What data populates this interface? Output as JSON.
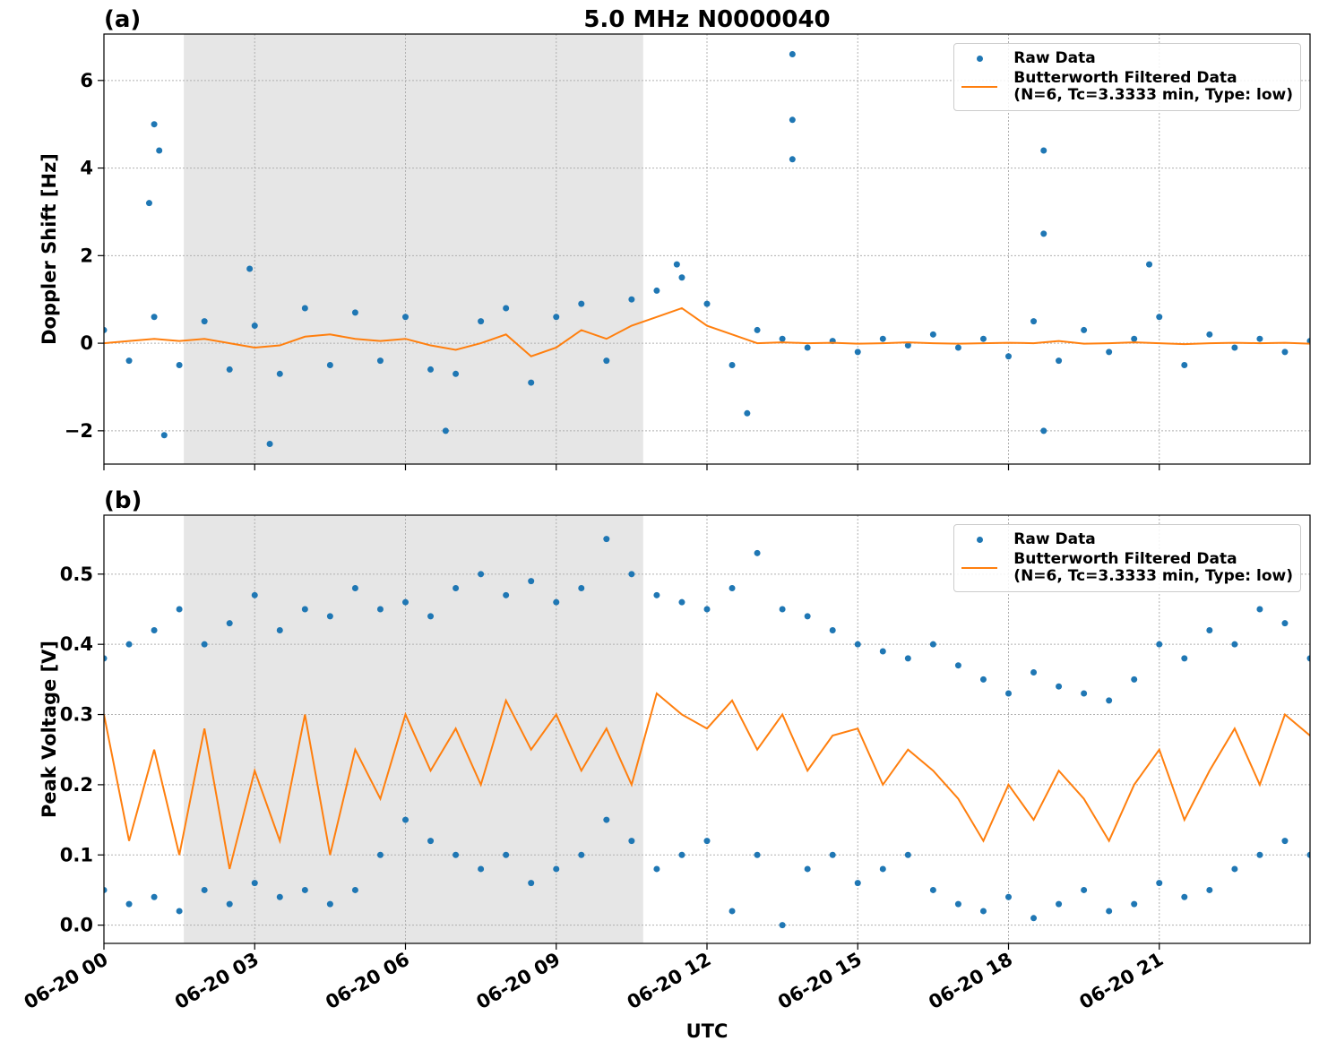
{
  "chart_data": [
    {
      "type": "combo",
      "panel_label": "(a)",
      "title": "5.0 MHz N0000040",
      "ylabel": "Doppler Shift [Hz]",
      "xlim": [
        0,
        24
      ],
      "xticks": [
        0,
        3,
        6,
        9,
        12,
        15,
        18,
        21
      ],
      "show_xtick_labels": false,
      "ylim": [
        -2.76,
        7.06
      ],
      "yticks": [
        {
          "value": -2,
          "label": "−2"
        },
        0,
        2,
        4,
        6
      ],
      "grid": true,
      "legend": "upper right",
      "shade": {
        "xlim": [
          1.59,
          10.73
        ],
        "color": "#e6e6e6"
      },
      "series": [
        {
          "name": "Raw Data",
          "type": "scatter",
          "color": "#1f77b4",
          "x": [
            0,
            0.5,
            1,
            1.5,
            2,
            2.5,
            3,
            3.5,
            4,
            4.5,
            5,
            5.5,
            6,
            6.5,
            7,
            7.5,
            8,
            8.5,
            9,
            9.5,
            10,
            10.5,
            11,
            11.5,
            12,
            12.5,
            13,
            13.5,
            14,
            14.5,
            15,
            15.5,
            16,
            16.5,
            17,
            17.5,
            18,
            18.5,
            19,
            19.5,
            20,
            20.5,
            21,
            21.5,
            22,
            22.5,
            23,
            23.5,
            24,
            1.0,
            1.1,
            0.9,
            1.2,
            2.9,
            3.3,
            6.8,
            11.4,
            13.7,
            13.7,
            13.7,
            18.7,
            18.7,
            18.7,
            20.8,
            12.8
          ],
          "values": [
            0.3,
            -0.4,
            0.6,
            -0.5,
            0.5,
            -0.6,
            0.4,
            -0.7,
            0.8,
            -0.5,
            0.7,
            -0.4,
            0.6,
            -0.6,
            -0.7,
            0.5,
            0.8,
            -0.9,
            0.6,
            0.9,
            -0.4,
            1.0,
            1.2,
            1.5,
            0.9,
            -0.5,
            0.3,
            0.1,
            -0.1,
            0.05,
            -0.2,
            0.1,
            -0.05,
            0.2,
            -0.1,
            0.1,
            -0.3,
            0.5,
            -0.4,
            0.3,
            -0.2,
            0.1,
            0.6,
            -0.5,
            0.2,
            -0.1,
            0.1,
            -0.2,
            0.05,
            5.0,
            4.4,
            3.2,
            -2.1,
            1.7,
            -2.3,
            -2.0,
            1.8,
            6.6,
            5.1,
            4.2,
            4.4,
            2.5,
            -2.0,
            1.8,
            -1.6
          ]
        },
        {
          "name": "Butterworth Filtered Data\n(N=6, Tc=3.3333 min, Type: low)",
          "type": "line",
          "color": "#ff7f0e",
          "x": [
            0,
            0.5,
            1,
            1.5,
            2,
            2.5,
            3,
            3.5,
            4,
            4.5,
            5,
            5.5,
            6,
            6.5,
            7,
            7.5,
            8,
            8.5,
            9,
            9.5,
            10,
            10.5,
            11,
            11.5,
            12,
            12.5,
            13,
            13.5,
            14,
            14.5,
            15,
            15.5,
            16,
            16.5,
            17,
            17.5,
            18,
            18.5,
            19,
            19.5,
            20,
            20.5,
            21,
            21.5,
            22,
            22.5,
            23,
            23.5,
            24
          ],
          "values": [
            0,
            0.05,
            0.1,
            0.05,
            0.1,
            0,
            -0.1,
            -0.05,
            0.15,
            0.2,
            0.1,
            0.05,
            0.1,
            -0.05,
            -0.15,
            0,
            0.2,
            -0.3,
            -0.1,
            0.3,
            0.1,
            0.4,
            0.6,
            0.8,
            0.4,
            0.2,
            0,
            0.02,
            0,
            0.01,
            -0.01,
            0,
            0.02,
            0,
            -0.01,
            0,
            0.01,
            0,
            0.05,
            -0.01,
            0,
            0.02,
            0,
            -0.02,
            0,
            0.01,
            0,
            0.01,
            -0.01
          ]
        }
      ]
    },
    {
      "type": "combo",
      "panel_label": "(b)",
      "ylabel": "Peak Voltage [V]",
      "xlabel": "UTC",
      "xlim": [
        0,
        24
      ],
      "xticks": [
        {
          "value": 0,
          "label": "06-20 00"
        },
        {
          "value": 3,
          "label": "06-20 03"
        },
        {
          "value": 6,
          "label": "06-20 06"
        },
        {
          "value": 9,
          "label": "06-20 09"
        },
        {
          "value": 12,
          "label": "06-20 12"
        },
        {
          "value": 15,
          "label": "06-20 15"
        },
        {
          "value": 18,
          "label": "06-20 18"
        },
        {
          "value": 21,
          "label": "06-20 21"
        }
      ],
      "show_xtick_labels": true,
      "ylim": [
        -0.026,
        0.584
      ],
      "yticks": [
        {
          "value": 0,
          "label": "0.0"
        },
        0.1,
        0.2,
        0.3,
        0.4,
        0.5
      ],
      "grid": true,
      "legend": "upper right",
      "shade": {
        "xlim": [
          1.59,
          10.73
        ],
        "color": "#e6e6e6"
      },
      "series": [
        {
          "name": "Raw Data",
          "type": "scatter",
          "color": "#1f77b4",
          "x": [
            0,
            0.5,
            1,
            1.5,
            2,
            2.5,
            3,
            3.5,
            4,
            4.5,
            5,
            5.5,
            6,
            6.5,
            7,
            7.5,
            8,
            8.5,
            9,
            9.5,
            10,
            10.5,
            11,
            11.5,
            12,
            12.5,
            13,
            13.5,
            14,
            14.5,
            15,
            15.5,
            16,
            16.5,
            17,
            17.5,
            18,
            18.5,
            19,
            19.5,
            20,
            20.5,
            21,
            21.5,
            22,
            22.5,
            23,
            23.5,
            24,
            0,
            0.5,
            1,
            1.5,
            2,
            2.5,
            3,
            3.5,
            4,
            4.5,
            5,
            5.5,
            6,
            6.5,
            7,
            7.5,
            8,
            8.5,
            9,
            9.5,
            10,
            10.5,
            11,
            11.5,
            12,
            12.5,
            13,
            13.5,
            14,
            14.5,
            15,
            15.5,
            16,
            16.5,
            17,
            17.5,
            18,
            18.5,
            19,
            19.5,
            20,
            20.5,
            21,
            21.5,
            22,
            22.5,
            23,
            23.5,
            24
          ],
          "values": [
            0.38,
            0.4,
            0.42,
            0.45,
            0.4,
            0.43,
            0.47,
            0.42,
            0.45,
            0.44,
            0.48,
            0.45,
            0.46,
            0.44,
            0.48,
            0.5,
            0.47,
            0.49,
            0.46,
            0.48,
            0.55,
            0.5,
            0.47,
            0.46,
            0.45,
            0.48,
            0.53,
            0.45,
            0.44,
            0.42,
            0.4,
            0.39,
            0.38,
            0.4,
            0.37,
            0.35,
            0.33,
            0.36,
            0.34,
            0.33,
            0.32,
            0.35,
            0.4,
            0.38,
            0.42,
            0.4,
            0.45,
            0.43,
            0.38,
            0.05,
            0.03,
            0.04,
            0.02,
            0.05,
            0.03,
            0.06,
            0.04,
            0.05,
            0.03,
            0.05,
            0.1,
            0.15,
            0.12,
            0.1,
            0.08,
            0.1,
            0.06,
            0.08,
            0.1,
            0.15,
            0.12,
            0.08,
            0.1,
            0.12,
            0.02,
            0.1,
            0.0,
            0.08,
            0.1,
            0.06,
            0.08,
            0.1,
            0.05,
            0.03,
            0.02,
            0.04,
            0.01,
            0.03,
            0.05,
            0.02,
            0.03,
            0.06,
            0.04,
            0.05,
            0.08,
            0.1,
            0.12,
            0.1
          ]
        },
        {
          "name": "Butterworth Filtered Data\n(N=6, Tc=3.3333 min, Type: low)",
          "type": "line",
          "color": "#ff7f0e",
          "x": [
            0,
            0.5,
            1,
            1.5,
            2,
            2.5,
            3,
            3.5,
            4,
            4.5,
            5,
            5.5,
            6,
            6.5,
            7,
            7.5,
            8,
            8.5,
            9,
            9.5,
            10,
            10.5,
            11,
            11.5,
            12,
            12.5,
            13,
            13.5,
            14,
            14.5,
            15,
            15.5,
            16,
            16.5,
            17,
            17.5,
            18,
            18.5,
            19,
            19.5,
            20,
            20.5,
            21,
            21.5,
            22,
            22.5,
            23,
            23.5,
            24
          ],
          "values": [
            0.3,
            0.12,
            0.25,
            0.1,
            0.28,
            0.08,
            0.22,
            0.12,
            0.3,
            0.1,
            0.25,
            0.18,
            0.3,
            0.22,
            0.28,
            0.2,
            0.32,
            0.25,
            0.3,
            0.22,
            0.28,
            0.2,
            0.33,
            0.3,
            0.28,
            0.32,
            0.25,
            0.3,
            0.22,
            0.27,
            0.28,
            0.2,
            0.25,
            0.22,
            0.18,
            0.12,
            0.2,
            0.15,
            0.22,
            0.18,
            0.12,
            0.2,
            0.25,
            0.15,
            0.22,
            0.28,
            0.2,
            0.3,
            0.27
          ]
        }
      ]
    }
  ]
}
